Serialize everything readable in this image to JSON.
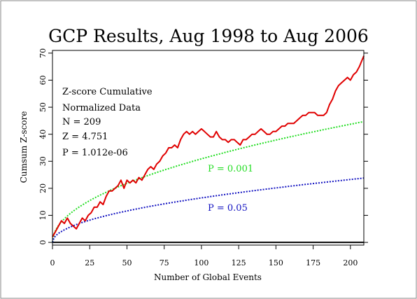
{
  "chart_data": {
    "type": "line",
    "title": "GCP Results, Aug 1998 to Aug 2006",
    "xlabel": "Number of Global Events",
    "ylabel": "Cumsum Z-score",
    "xlim": [
      0,
      209
    ],
    "ylim": [
      -1,
      71
    ],
    "xticks": [
      "0",
      "25",
      "50",
      "75",
      "100",
      "125",
      "150",
      "175",
      "200"
    ],
    "yticks": [
      "0",
      "10",
      "20",
      "30",
      "40",
      "50",
      "60",
      "70"
    ],
    "legend": "none",
    "grid": false,
    "annotations": [
      "Z-score Cumulative",
      "Normalized Data",
      "N = 209",
      "Z = 4.751",
      "P = 1.012e-06"
    ],
    "colors": {
      "cumulative": "#e00000",
      "p001": "#22dd22",
      "p05": "#1010c0",
      "baseline": "#000000",
      "frame": "#888888"
    },
    "series": [
      {
        "label_on_chart": "",
        "style": "solid",
        "x": [
          0,
          2,
          4,
          6,
          8,
          10,
          12,
          14,
          16,
          18,
          20,
          22,
          24,
          26,
          28,
          30,
          32,
          34,
          36,
          38,
          40,
          42,
          44,
          46,
          48,
          50,
          52,
          54,
          56,
          58,
          60,
          62,
          64,
          66,
          68,
          70,
          72,
          74,
          76,
          78,
          80,
          82,
          84,
          86,
          88,
          90,
          92,
          94,
          96,
          98,
          100,
          102,
          104,
          106,
          108,
          110,
          112,
          114,
          116,
          118,
          120,
          122,
          124,
          126,
          128,
          130,
          132,
          134,
          136,
          138,
          140,
          142,
          144,
          146,
          148,
          150,
          152,
          154,
          156,
          158,
          160,
          162,
          164,
          166,
          168,
          170,
          172,
          174,
          176,
          178,
          180,
          182,
          184,
          186,
          188,
          190,
          192,
          194,
          196,
          198,
          200,
          202,
          204,
          206,
          209
        ],
        "values": [
          2,
          4,
          6,
          8,
          7,
          9,
          7,
          6,
          5,
          7,
          9,
          8,
          10,
          11,
          13,
          13,
          15,
          14,
          17,
          19,
          19,
          20,
          21,
          23,
          20,
          23,
          22,
          23,
          22,
          24,
          23,
          25,
          27,
          28,
          27,
          29,
          30,
          32,
          33,
          35,
          35,
          36,
          35,
          38,
          40,
          41,
          40,
          41,
          40,
          41,
          42,
          41,
          40,
          39,
          39,
          41,
          39,
          38,
          38,
          37,
          38,
          38,
          37,
          36,
          38,
          38,
          39,
          40,
          40,
          41,
          42,
          41,
          40,
          40,
          41,
          41,
          42,
          43,
          43,
          44,
          44,
          44,
          45,
          46,
          47,
          47,
          48,
          48,
          48,
          47,
          47,
          47,
          48,
          51,
          53,
          56,
          58,
          59,
          60,
          61,
          60,
          62,
          63,
          65,
          69
        ]
      },
      {
        "label_on_chart": "P = 0.001",
        "style": "dotted",
        "formula": "3.09 * sqrt(N)"
      },
      {
        "label_on_chart": "P = 0.05",
        "style": "dotted",
        "formula": "1.645 * sqrt(N)"
      }
    ]
  }
}
